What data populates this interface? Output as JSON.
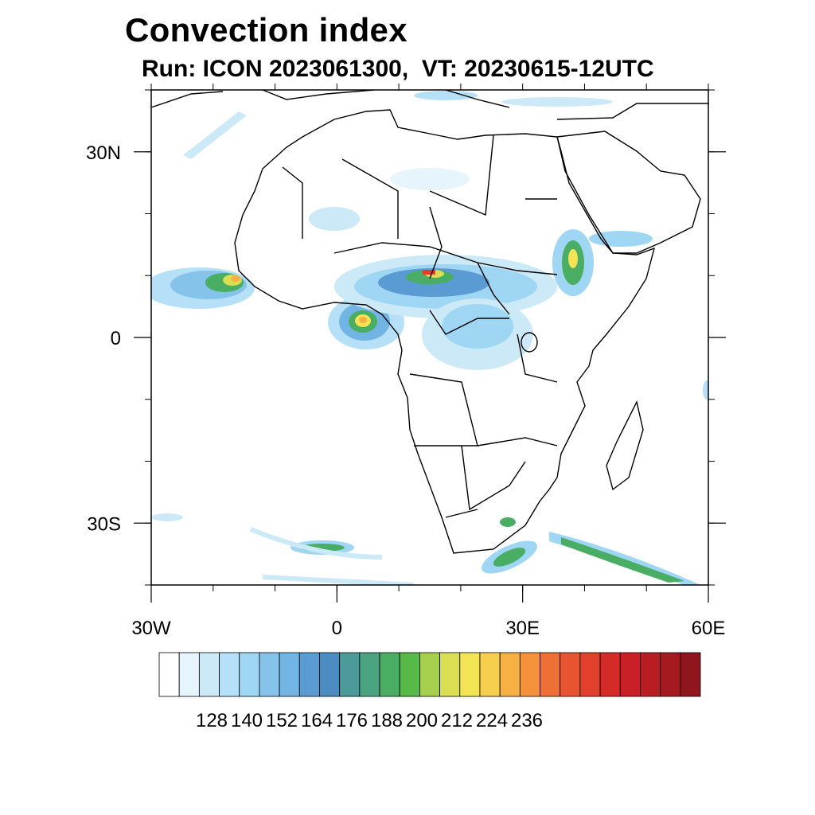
{
  "title": "Convection index",
  "subtitle": "Run: ICON 2023061300,  VT: 20230615-12UTC",
  "map": {
    "extent": {
      "lon": [
        -30,
        60
      ],
      "lat": [
        -40,
        40
      ]
    },
    "lat_ticks": [
      {
        "lat": 30,
        "label": "30N"
      },
      {
        "lat": 0,
        "label": "0"
      },
      {
        "lat": -30,
        "label": "30S"
      }
    ],
    "lon_ticks": [
      {
        "lon": -30,
        "label": "30W"
      },
      {
        "lon": 0,
        "label": "0"
      },
      {
        "lon": 30,
        "label": "30E"
      },
      {
        "lon": 60,
        "label": "60E"
      }
    ]
  },
  "colorbar": {
    "labels": [
      "128",
      "140",
      "152",
      "164",
      "176",
      "188",
      "200",
      "212",
      "224",
      "236"
    ],
    "colors": [
      "#ffffff",
      "#e6f4fc",
      "#cce9f8",
      "#b5e0f7",
      "#9ed6f4",
      "#85c3ea",
      "#72b4e3",
      "#5a9bd3",
      "#4d8cc0",
      "#4d9a9a",
      "#4aa381",
      "#49ad63",
      "#57b947",
      "#a7cf4e",
      "#d9de53",
      "#f2e455",
      "#f7cf4f",
      "#f6b043",
      "#f4913a",
      "#ee7034",
      "#e75530",
      "#e0402c",
      "#d62a29",
      "#c91f26",
      "#b81d24",
      "#a51a21",
      "#8f161d"
    ]
  }
}
